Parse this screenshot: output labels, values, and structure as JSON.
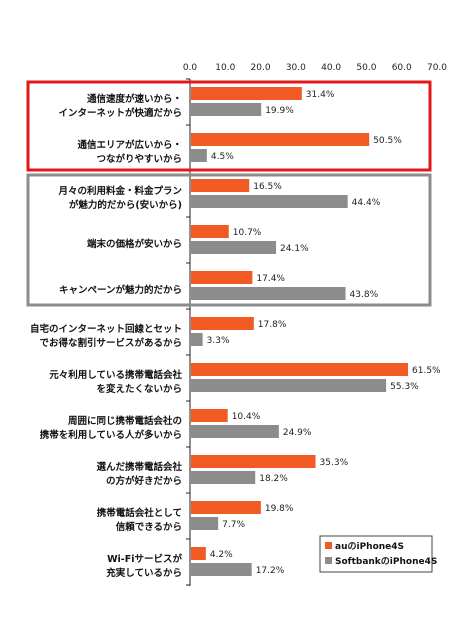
{
  "chart_data": {
    "type": "bar",
    "orientation": "horizontal",
    "xlim": [
      0,
      70
    ],
    "xticks": [
      "0.0",
      "10.0",
      "20.0",
      "30.0",
      "40.0",
      "50.0",
      "60.0",
      "70.0"
    ],
    "categories": [
      [
        "通信速度が速いから・",
        "インターネットが快適だから"
      ],
      [
        "通信エリアが広いから・",
        "つながりやすいから"
      ],
      [
        "月々の利用料金・料金プラン",
        "が魅力的だから(安いから)"
      ],
      [
        "端末の価格が安いから"
      ],
      [
        "キャンペーンが魅力的だから"
      ],
      [
        "自宅のインターネット回線とセット",
        "でお得な割引サービスがあるから"
      ],
      [
        "元々利用している携帯電話会社",
        "を変えたくないから"
      ],
      [
        "周囲に同じ携帯電話会社の",
        "携帯を利用している人が多いから"
      ],
      [
        "選んだ携帯電話会社",
        "の方が好きだから"
      ],
      [
        "携帯電話会社として",
        "信頼できるから"
      ],
      [
        "Wi-Fiサービスが",
        "充実しているから"
      ]
    ],
    "series": [
      {
        "name": "auのiPhone4S",
        "color": "#f15a22",
        "values": [
          31.4,
          50.5,
          16.5,
          10.7,
          17.4,
          17.8,
          61.5,
          10.4,
          35.3,
          19.8,
          4.2
        ],
        "labels": [
          "31.4%",
          "50.5%",
          "16.5%",
          "10.7%",
          "17.4%",
          "17.8%",
          "61.5%",
          "10.4%",
          "35.3%",
          "19.8%",
          "4.2%"
        ]
      },
      {
        "name": "SoftbankのiPhone4S",
        "color": "#8c8c8c",
        "values": [
          19.9,
          4.5,
          44.4,
          24.1,
          43.8,
          3.3,
          55.3,
          24.9,
          18.2,
          7.7,
          17.2
        ],
        "labels": [
          "19.9%",
          "4.5%",
          "44.4%",
          "24.1%",
          "43.8%",
          "3.3%",
          "55.3%",
          "24.9%",
          "18.2%",
          "7.7%",
          "17.2%"
        ]
      }
    ],
    "grid": false,
    "legend": "bottom-right",
    "highlight_groups": [
      {
        "color": "#e01818",
        "categories": [
          0,
          1
        ]
      },
      {
        "color": "#8c8c8c",
        "categories": [
          2,
          3,
          4
        ]
      }
    ]
  }
}
